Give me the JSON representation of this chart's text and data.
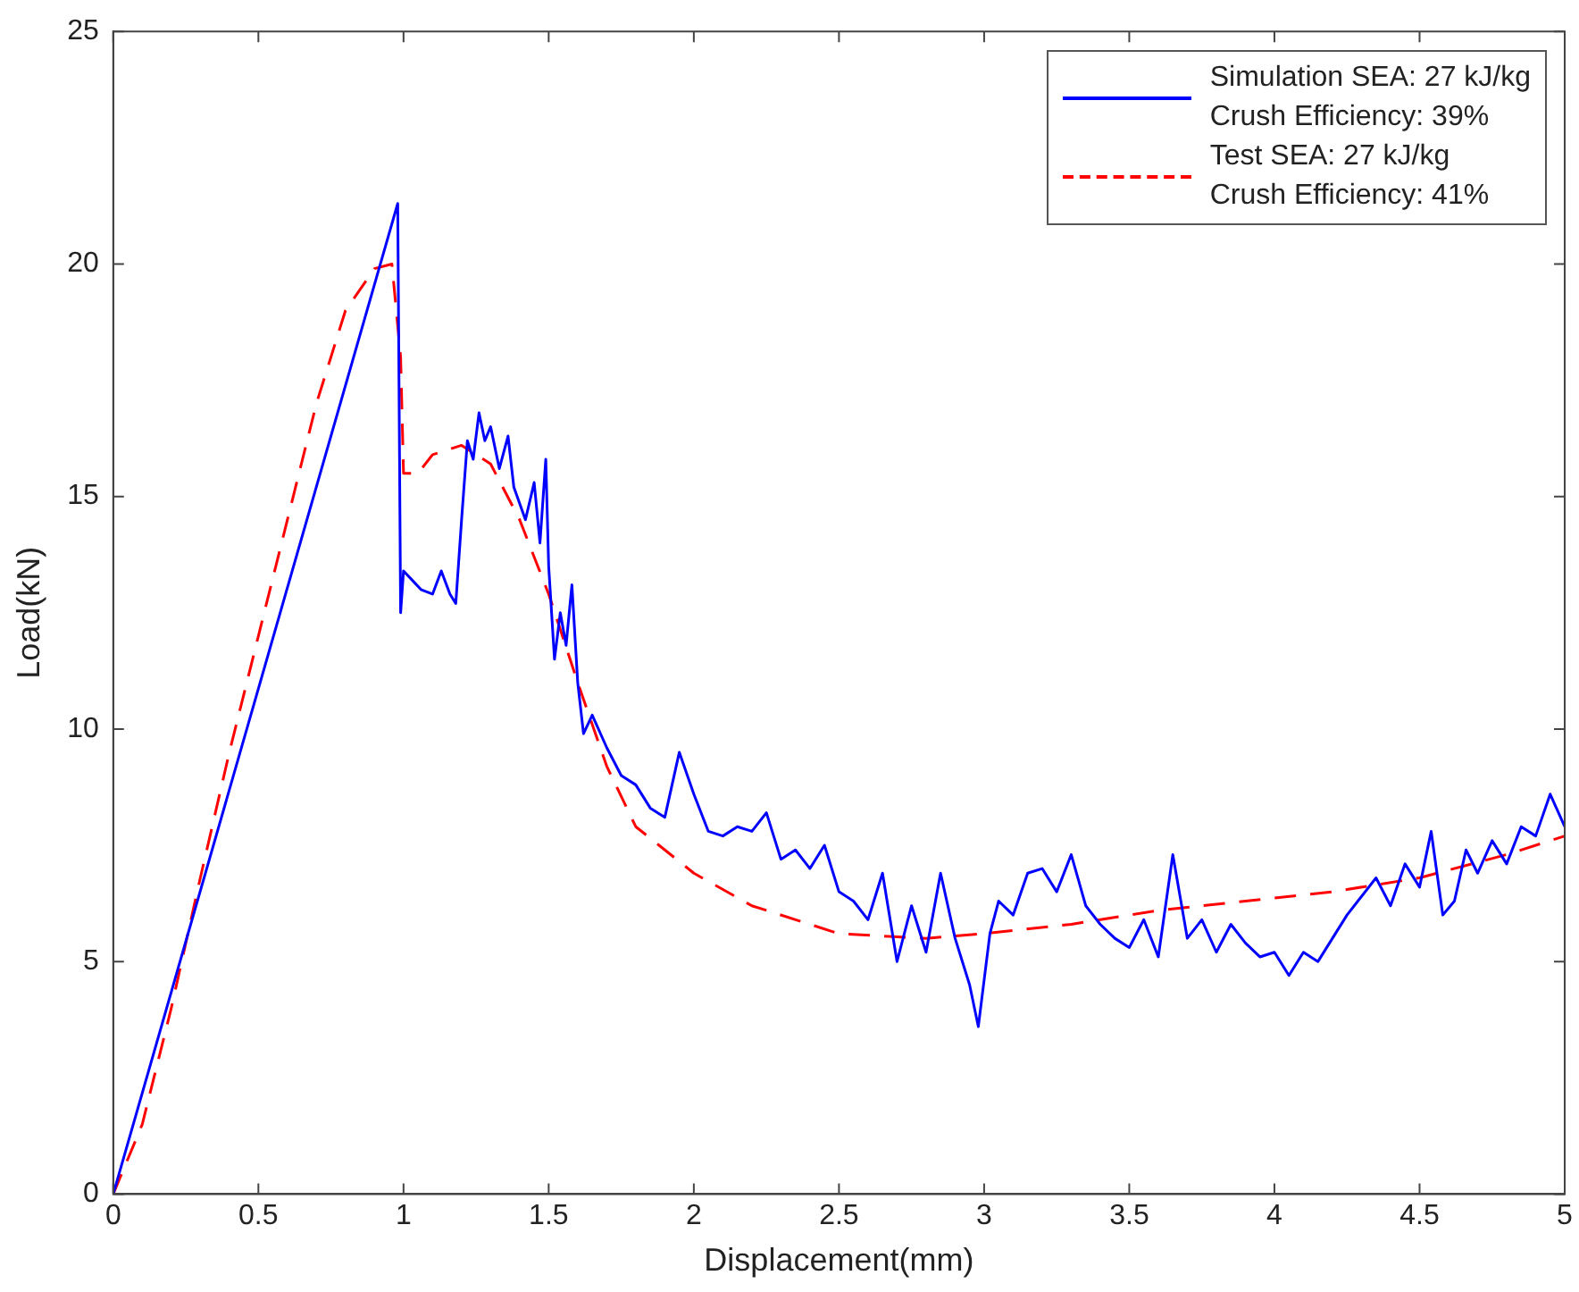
{
  "chart_data": {
    "type": "line",
    "xlabel": "Displacement(mm)",
    "ylabel": "Load(kN)",
    "xlim": [
      0,
      5
    ],
    "xticks": [
      0,
      0.5,
      1,
      1.5,
      2,
      2.5,
      3,
      3.5,
      4,
      4.5,
      5
    ],
    "ylim": [
      0,
      25
    ],
    "yticks": [
      0,
      5,
      10,
      15,
      20,
      25
    ],
    "grid": false,
    "legend": "top right",
    "marker": "none",
    "series": [
      {
        "name": "Simulation SEA: 27 kJ/kg\nCrush Efficiency: 39%",
        "color": "#0000ff",
        "line_style": "solid",
        "x": [
          0,
          0.98,
          0.99,
          1.0,
          1.03,
          1.06,
          1.1,
          1.13,
          1.16,
          1.18,
          1.2,
          1.22,
          1.24,
          1.26,
          1.28,
          1.3,
          1.33,
          1.36,
          1.38,
          1.42,
          1.45,
          1.47,
          1.49,
          1.5,
          1.52,
          1.54,
          1.56,
          1.58,
          1.6,
          1.62,
          1.65,
          1.7,
          1.75,
          1.8,
          1.85,
          1.9,
          1.95,
          2.0,
          2.05,
          2.1,
          2.15,
          2.2,
          2.25,
          2.3,
          2.35,
          2.4,
          2.45,
          2.5,
          2.55,
          2.6,
          2.65,
          2.7,
          2.75,
          2.8,
          2.85,
          2.9,
          2.95,
          2.98,
          3.02,
          3.05,
          3.1,
          3.15,
          3.2,
          3.25,
          3.3,
          3.35,
          3.4,
          3.45,
          3.5,
          3.55,
          3.6,
          3.65,
          3.7,
          3.75,
          3.8,
          3.85,
          3.9,
          3.95,
          4.0,
          4.05,
          4.1,
          4.15,
          4.2,
          4.25,
          4.3,
          4.35,
          4.4,
          4.45,
          4.5,
          4.54,
          4.58,
          4.62,
          4.66,
          4.7,
          4.75,
          4.8,
          4.85,
          4.9,
          4.95,
          5.0
        ],
        "values": [
          0,
          21.3,
          12.5,
          13.4,
          13.2,
          13.0,
          12.9,
          13.4,
          12.9,
          12.7,
          14.5,
          16.2,
          15.8,
          16.8,
          16.2,
          16.5,
          15.6,
          16.3,
          15.2,
          14.5,
          15.3,
          14.0,
          15.8,
          13.5,
          11.5,
          12.5,
          11.8,
          13.1,
          11.0,
          9.9,
          10.3,
          9.6,
          9.0,
          8.8,
          8.3,
          8.1,
          9.5,
          8.6,
          7.8,
          7.7,
          7.9,
          7.8,
          8.2,
          7.2,
          7.4,
          7.0,
          7.5,
          6.5,
          6.3,
          5.9,
          6.9,
          5.0,
          6.2,
          5.2,
          6.9,
          5.5,
          4.5,
          3.6,
          5.6,
          6.3,
          6.0,
          6.9,
          7.0,
          6.5,
          7.3,
          6.2,
          5.8,
          5.5,
          5.3,
          5.9,
          5.1,
          7.3,
          5.5,
          5.9,
          5.2,
          5.8,
          5.4,
          5.1,
          5.2,
          4.7,
          5.2,
          5.0,
          5.5,
          6.0,
          6.4,
          6.8,
          6.2,
          7.1,
          6.6,
          7.8,
          6.0,
          6.3,
          7.4,
          6.9,
          7.6,
          7.1,
          7.9,
          7.7,
          8.6,
          7.9
        ]
      },
      {
        "name": "Test SEA: 27 kJ/kg\nCrush Efficiency: 41%",
        "color": "#ff0000",
        "line_style": "dashed",
        "x": [
          0,
          0.1,
          0.2,
          0.3,
          0.4,
          0.5,
          0.6,
          0.7,
          0.8,
          0.9,
          0.96,
          0.99,
          1.0,
          1.05,
          1.1,
          1.2,
          1.3,
          1.4,
          1.5,
          1.6,
          1.7,
          1.8,
          2.0,
          2.2,
          2.5,
          2.8,
          3.0,
          3.3,
          3.6,
          3.9,
          4.2,
          4.5,
          4.8,
          5.0
        ],
        "values": [
          0,
          1.5,
          4.0,
          6.8,
          9.5,
          12.0,
          14.5,
          17.0,
          19.0,
          19.9,
          20.0,
          18.0,
          15.5,
          15.5,
          15.9,
          16.1,
          15.7,
          14.5,
          12.9,
          11.0,
          9.2,
          7.9,
          6.9,
          6.2,
          5.6,
          5.5,
          5.6,
          5.8,
          6.1,
          6.3,
          6.5,
          6.8,
          7.3,
          7.7
        ]
      }
    ]
  }
}
